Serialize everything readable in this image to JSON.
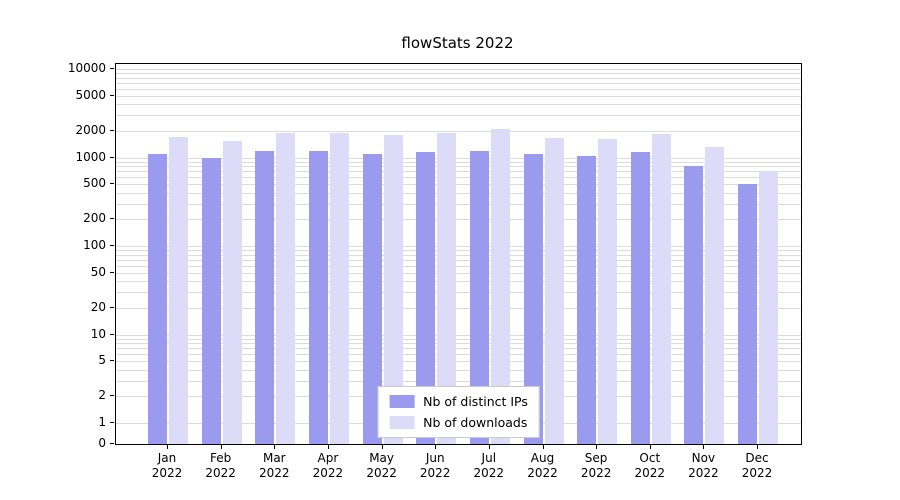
{
  "chart_data": {
    "type": "bar",
    "title": "flowStats 2022",
    "yscale": "log",
    "grid": true,
    "legend_position": "lower center",
    "ylim": [
      0,
      10000
    ],
    "categories": [
      "Jan 2022",
      "Feb 2022",
      "Mar 2022",
      "Apr 2022",
      "May 2022",
      "Jun 2022",
      "Jul 2022",
      "Aug 2022",
      "Sep 2022",
      "Oct 2022",
      "Nov 2022",
      "Dec 2022"
    ],
    "yticks": [
      "10000",
      "5000",
      "2000",
      "1000",
      "500",
      "200",
      "100",
      "50",
      "20",
      "10",
      "5",
      "2",
      "1",
      "0"
    ],
    "series": [
      {
        "name": "Nb of distinct IPs",
        "color": "#9a9aee",
        "values": [
          1100,
          1000,
          1200,
          1200,
          1100,
          1150,
          1200,
          1100,
          1050,
          1150,
          800,
          500
        ]
      },
      {
        "name": "Nb of downloads",
        "color": "#dcdcf8",
        "values": [
          1700,
          1550,
          1900,
          1900,
          1800,
          1900,
          2100,
          1650,
          1600,
          1850,
          1300,
          700
        ]
      }
    ]
  }
}
